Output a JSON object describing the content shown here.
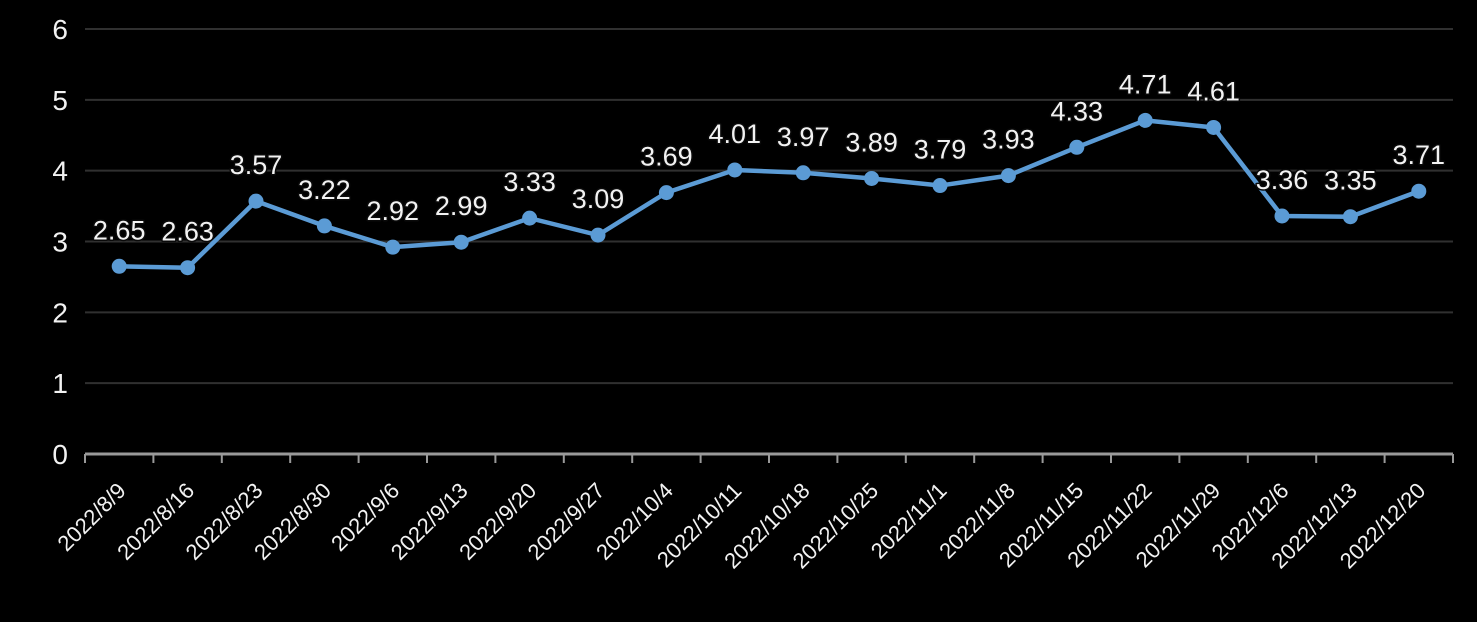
{
  "chart_data": {
    "type": "line",
    "title": "",
    "categories": [
      "2022/8/9",
      "2022/8/16",
      "2022/8/23",
      "2022/8/30",
      "2022/9/6",
      "2022/9/13",
      "2022/9/20",
      "2022/9/27",
      "2022/10/4",
      "2022/10/11",
      "2022/10/18",
      "2022/10/25",
      "2022/11/1",
      "2022/11/8",
      "2022/11/15",
      "2022/11/22",
      "2022/11/29",
      "2022/12/6",
      "2022/12/13",
      "2022/12/20"
    ],
    "values": [
      2.65,
      2.63,
      3.57,
      3.22,
      2.92,
      2.99,
      3.33,
      3.09,
      3.69,
      4.01,
      3.97,
      3.89,
      3.79,
      3.93,
      4.33,
      4.71,
      4.61,
      3.36,
      3.35,
      3.71
    ],
    "data_labels": [
      "2.65",
      "2.63",
      "3.57",
      "3.22",
      "2.92",
      "2.99",
      "3.33",
      "3.09",
      "3.69",
      "4.01",
      "3.97",
      "3.89",
      "3.79",
      "3.93",
      "4.33",
      "4.71",
      "4.61",
      "3.36",
      "3.35",
      "3.71"
    ],
    "xlabel": "",
    "ylabel": "",
    "ylim": [
      0,
      6
    ],
    "yticks": [
      0,
      1,
      2,
      3,
      4,
      5,
      6
    ],
    "grid": true,
    "legend_position": "none",
    "x_label_rotation_deg": -45,
    "colors": {
      "background": "#000000",
      "line": "#5B9BD5",
      "marker": "#5B9BD5",
      "grid_line": "#303030",
      "axis_line": "#999999",
      "tick_mark": "#999999",
      "axis_text": "#F2F2F2",
      "data_label_text": "#F2F2F2"
    }
  }
}
